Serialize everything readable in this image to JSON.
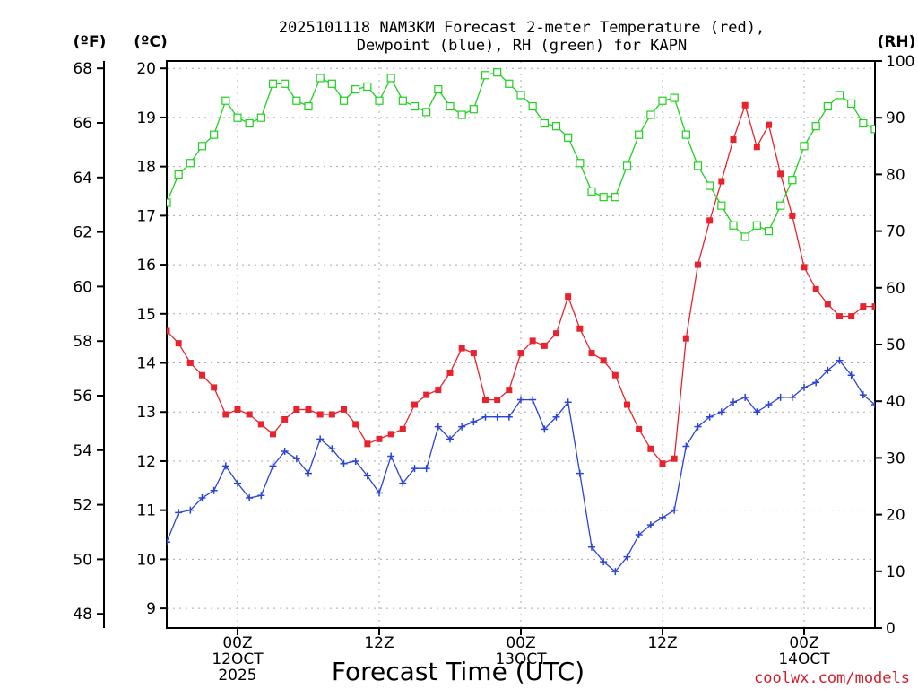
{
  "chart_data": {
    "type": "line",
    "title_lines": [
      "2025101118 NAM3KM Forecast 2-meter Temperature (red),",
      "Dewpoint (blue), RH (green) for KAPN"
    ],
    "xlabel": "Forecast Time (UTC)",
    "credit": "coolwx.com/models",
    "axes": {
      "fahrenheit": {
        "unit": "(ºF)",
        "ticks": [
          "48",
          "50",
          "52",
          "54",
          "56",
          "58",
          "60",
          "62",
          "64",
          "66",
          "68"
        ],
        "tick_values": [
          48,
          50,
          52,
          54,
          56,
          58,
          60,
          62,
          64,
          66,
          68
        ]
      },
      "celsius": {
        "unit": "(ºC)",
        "ylim": [
          8.6,
          20.15
        ],
        "ticks": [
          "9",
          "10",
          "11",
          "12",
          "13",
          "14",
          "15",
          "16",
          "17",
          "18",
          "19",
          "20"
        ],
        "tick_values": [
          9,
          10,
          11,
          12,
          13,
          14,
          15,
          16,
          17,
          18,
          19,
          20
        ]
      },
      "rh": {
        "unit": "(RH)",
        "ylim": [
          0,
          100
        ],
        "ticks": [
          "0",
          "10",
          "20",
          "30",
          "40",
          "50",
          "60",
          "70",
          "80",
          "90",
          "100"
        ],
        "tick_values": [
          0,
          10,
          20,
          30,
          40,
          50,
          60,
          70,
          80,
          90,
          100
        ]
      },
      "x": {
        "xlim": [
          0,
          60
        ],
        "unit": "forecast hour",
        "ticks": [
          {
            "x": 6,
            "lines": [
              "00Z",
              "12OCT",
              "2025"
            ]
          },
          {
            "x": 18,
            "lines": [
              "12Z"
            ]
          },
          {
            "x": 30,
            "lines": [
              "00Z",
              "13OCT"
            ]
          },
          {
            "x": 42,
            "lines": [
              "12Z"
            ]
          },
          {
            "x": 54,
            "lines": [
              "00Z",
              "14OCT"
            ]
          }
        ]
      }
    },
    "grid": true,
    "series": [
      {
        "name": "Temperature",
        "color": "#e8232d",
        "marker": "filled-square",
        "axis": "celsius",
        "x": [
          0,
          1,
          2,
          3,
          4,
          5,
          6,
          7,
          8,
          9,
          10,
          11,
          12,
          13,
          14,
          15,
          16,
          17,
          18,
          19,
          20,
          21,
          22,
          23,
          24,
          25,
          26,
          27,
          28,
          29,
          30,
          31,
          32,
          33,
          34,
          35,
          36,
          37,
          38,
          39,
          40,
          41,
          42,
          43,
          44,
          45,
          46,
          47,
          48,
          49,
          50,
          51,
          52,
          53,
          54,
          55,
          56,
          57,
          58,
          59,
          60
        ],
        "values": [
          14.65,
          14.4,
          14.0,
          13.75,
          13.5,
          12.95,
          13.05,
          12.95,
          12.75,
          12.55,
          12.85,
          13.05,
          13.05,
          12.95,
          12.95,
          13.05,
          12.75,
          12.35,
          12.45,
          12.55,
          12.65,
          13.15,
          13.35,
          13.45,
          13.8,
          14.3,
          14.2,
          13.25,
          13.25,
          13.45,
          14.2,
          14.45,
          14.35,
          14.6,
          15.35,
          14.7,
          14.2,
          14.05,
          13.75,
          13.15,
          12.65,
          12.25,
          11.95,
          12.05,
          14.5,
          16.0,
          16.9,
          17.7,
          18.55,
          19.25,
          18.4,
          18.85,
          17.85,
          17.0,
          15.95,
          15.5,
          15.2,
          14.95,
          14.95,
          15.15,
          15.15
        ]
      },
      {
        "name": "Dewpoint",
        "color": "#2a43d8",
        "marker": "plus",
        "axis": "celsius",
        "x": [
          0,
          1,
          2,
          3,
          4,
          5,
          6,
          7,
          8,
          9,
          10,
          11,
          12,
          13,
          14,
          15,
          16,
          17,
          18,
          19,
          20,
          21,
          22,
          23,
          24,
          25,
          26,
          27,
          28,
          29,
          30,
          31,
          32,
          33,
          34,
          35,
          36,
          37,
          38,
          39,
          40,
          41,
          42,
          43,
          44,
          45,
          46,
          47,
          48,
          49,
          50,
          51,
          52,
          53,
          54,
          55,
          56,
          57,
          58,
          59,
          60
        ],
        "values": [
          10.35,
          10.95,
          11.0,
          11.25,
          11.4,
          11.9,
          11.55,
          11.25,
          11.3,
          11.9,
          12.2,
          12.05,
          11.75,
          12.45,
          12.25,
          11.95,
          12.0,
          11.7,
          11.35,
          12.1,
          11.55,
          11.85,
          11.85,
          12.7,
          12.45,
          12.7,
          12.8,
          12.9,
          12.9,
          12.9,
          13.25,
          13.25,
          12.65,
          12.9,
          13.2,
          11.75,
          10.25,
          9.95,
          9.75,
          10.05,
          10.5,
          10.7,
          10.85,
          11.0,
          12.3,
          12.7,
          12.9,
          13.0,
          13.2,
          13.3,
          13.0,
          13.15,
          13.3,
          13.3,
          13.5,
          13.6,
          13.85,
          14.05,
          13.75,
          13.35,
          13.15
        ]
      },
      {
        "name": "RH",
        "color": "#1fd11f",
        "marker": "open-square",
        "axis": "rh",
        "x": [
          0,
          1,
          2,
          3,
          4,
          5,
          6,
          7,
          8,
          9,
          10,
          11,
          12,
          13,
          14,
          15,
          16,
          17,
          18,
          19,
          20,
          21,
          22,
          23,
          24,
          25,
          26,
          27,
          28,
          29,
          30,
          31,
          32,
          33,
          34,
          35,
          36,
          37,
          38,
          39,
          40,
          41,
          42,
          43,
          44,
          45,
          46,
          47,
          48,
          49,
          50,
          51,
          52,
          53,
          54,
          55,
          56,
          57,
          58,
          59,
          60
        ],
        "values": [
          75,
          80,
          82,
          85,
          87,
          93,
          90,
          89,
          90,
          96,
          96,
          93,
          92,
          97,
          96,
          93,
          95,
          95.5,
          93,
          97,
          93,
          92,
          91,
          95,
          92,
          90.5,
          91.5,
          97.5,
          98,
          96,
          94,
          92,
          89,
          88.5,
          86.5,
          82,
          77,
          76,
          76,
          81.5,
          87,
          90.5,
          93,
          93.5,
          87,
          81.5,
          78,
          74.5,
          71,
          69,
          71,
          70,
          74.5,
          79,
          85,
          88.5,
          92,
          94,
          92.5,
          89,
          88
        ]
      }
    ]
  }
}
